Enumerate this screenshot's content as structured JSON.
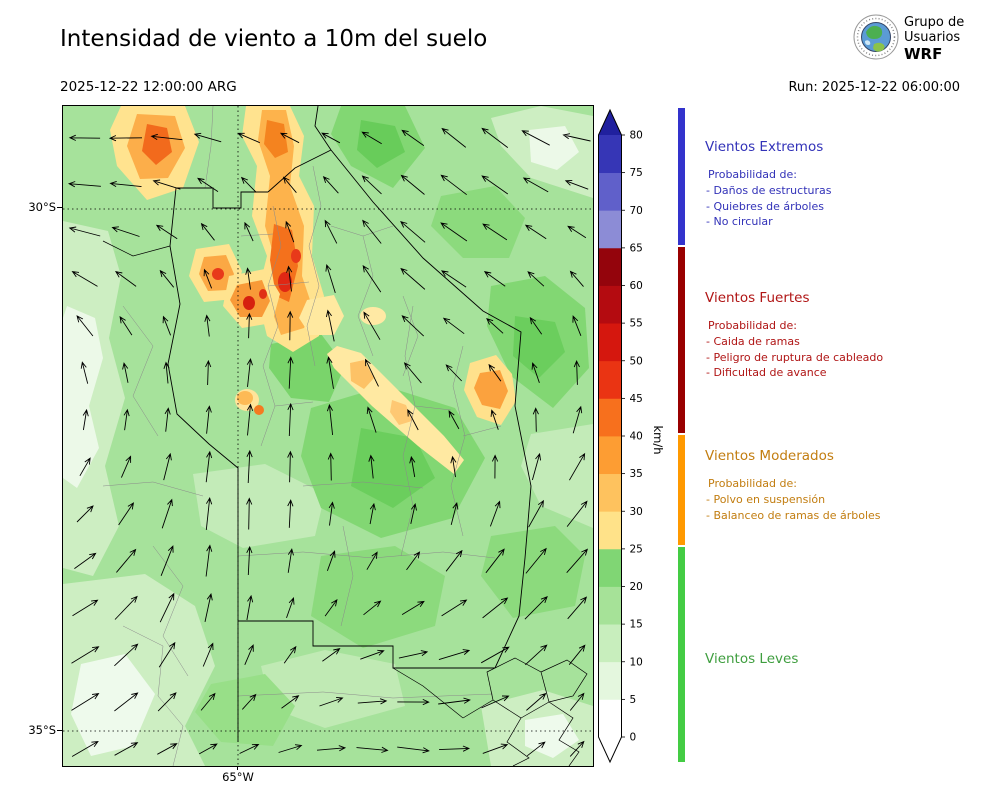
{
  "header": {
    "title": "Intensidad de viento a 10m del suelo",
    "valid_time": "2025-12-22 12:00:00 ARG",
    "run_time": "Run: 2025-12-22 06:00:00",
    "logo_line1": "Grupo de",
    "logo_line2": "Usuarios",
    "logo_line3": "WRF"
  },
  "map_axes": {
    "lat_ticks": [
      {
        "label": "30°S"
      },
      {
        "label": "35°S"
      }
    ],
    "lon_ticks": [
      {
        "label": "65°W"
      }
    ]
  },
  "colorbar": {
    "label": "km/h",
    "tick_values": [
      0,
      5,
      10,
      15,
      20,
      25,
      30,
      35,
      40,
      45,
      50,
      55,
      60,
      65,
      70,
      75,
      80
    ],
    "segment_colors": [
      "#ffffff",
      "#e4f7de",
      "#c8eebd",
      "#a6e298",
      "#80d674",
      "#ffe289",
      "#fec25e",
      "#fd9d33",
      "#f7701d",
      "#ea3413",
      "#d5170e",
      "#b40b10",
      "#94040c",
      "#8c8cd6",
      "#6060ca",
      "#3636b6"
    ],
    "extend_top_color": "#20209e",
    "extend_bottom_color": "#ffffff"
  },
  "legend": {
    "sections": [
      {
        "title": "Vientos Extremos",
        "color": "#3232b8",
        "bar_color": "#3333cc",
        "intro": "Probabilidad de:",
        "items": [
          "- Daños de estructuras",
          "- Quiebres de árboles",
          "- No circular"
        ]
      },
      {
        "title": "Vientos Fuertes",
        "color": "#b01515",
        "bar_color": "#990000",
        "intro": "Probabilidad de:",
        "items": [
          "- Caida de ramas",
          "- Peligro de ruptura de cableado",
          "- Dificultad de avance"
        ]
      },
      {
        "title": "Vientos Moderados",
        "color": "#c27d10",
        "bar_color": "#ff9900",
        "intro": "Probabilidad de:",
        "items": [
          "- Polvo en suspensión",
          "- Balanceo de ramas de árboles"
        ]
      },
      {
        "title": "Vientos Leves",
        "color": "#3f9e3f",
        "bar_color": "#44cc44",
        "intro": "",
        "items": []
      }
    ]
  },
  "chart_data": {
    "type": "heatmap",
    "title": "Intensidad de viento a 10m del suelo",
    "valid_time": "2025-12-22 12:00:00 ARG",
    "model_run": "2025-12-22 06:00:00",
    "variable": "Wind intensity at 10 m above ground",
    "units": "km/h",
    "colorbar_range": [
      0,
      80
    ],
    "colorbar_tick_step": 5,
    "lat_tick_labels": [
      "30°S",
      "35°S"
    ],
    "lon_tick_labels": [
      "65°W"
    ],
    "overlay": "wind direction arrows (quiver field)",
    "field_summary": "Mostly light winds (5-25 km/h, green) across the region; moderate-to-strong winds (25-45 km/h, yellow/orange with small red cores) in elongated bands in the north around 29-31°S near 65°W; isolated moderate patches in the center-east",
    "categories": [
      {
        "label": "Vientos Leves",
        "range_kmh": [
          0,
          25
        ]
      },
      {
        "label": "Vientos Moderados",
        "range_kmh": [
          25,
          40
        ]
      },
      {
        "label": "Vientos Fuertes",
        "range_kmh": [
          40,
          65
        ]
      },
      {
        "label": "Vientos Extremos",
        "range_kmh": [
          65,
          80
        ]
      }
    ]
  }
}
